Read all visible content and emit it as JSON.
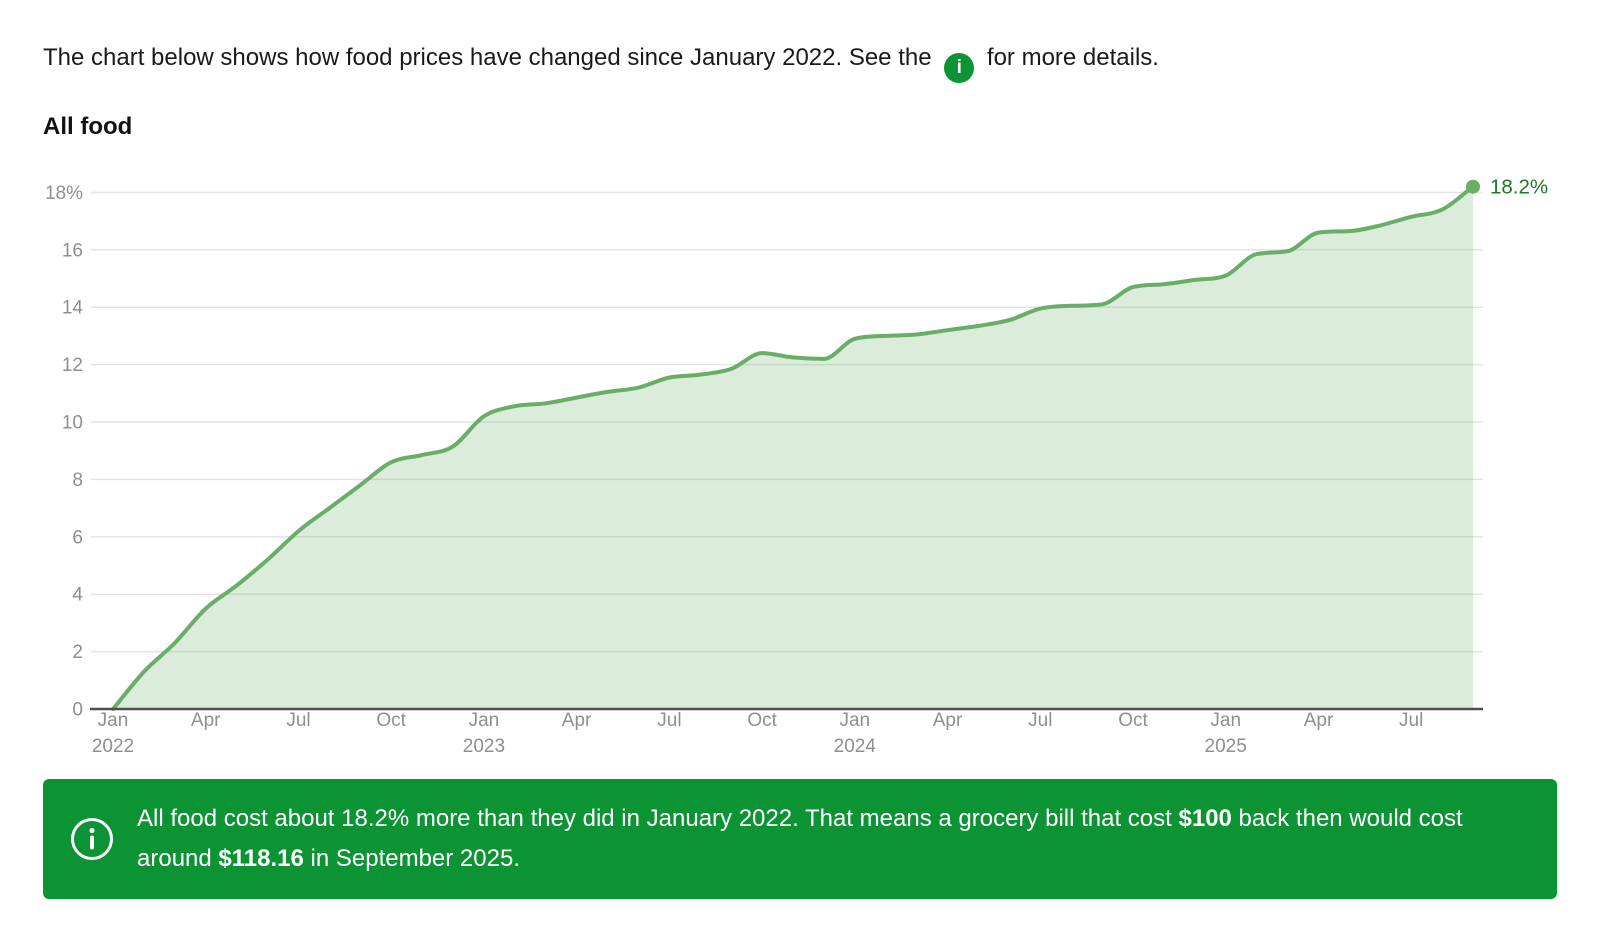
{
  "intro": {
    "text_before_icon": "The chart below shows how food prices have changed since January 2022. See the",
    "text_after_icon": "for more details.",
    "info_icon_glyph": "i"
  },
  "colors": {
    "accent_green": "#0c9434",
    "line_green": "#68ae66",
    "fill_green": "rgba(104,174,102,0.24)",
    "end_label_green": "#1d7a24",
    "gridline_gray": "#e4e4e4",
    "axis_dark": "#4f4f4f",
    "tick_gray": "#8f8f8f",
    "text_dark": "#1a1a1a"
  },
  "chart_data": {
    "type": "area",
    "title": "All food",
    "series_name": "All food",
    "grid": "horizontal",
    "legend": "none",
    "ylim": [
      0,
      19.2
    ],
    "y_unit": "%",
    "end_label": "18.2%",
    "x": [
      "Jan 2022",
      "Feb 2022",
      "Mar 2022",
      "Apr 2022",
      "May 2022",
      "Jun 2022",
      "Jul 2022",
      "Aug 2022",
      "Sep 2022",
      "Oct 2022",
      "Nov 2022",
      "Dec 2022",
      "Jan 2023",
      "Feb 2023",
      "Mar 2023",
      "Apr 2023",
      "May 2023",
      "Jun 2023",
      "Jul 2023",
      "Aug 2023",
      "Sep 2023",
      "Oct 2023",
      "Nov 2023",
      "Dec 2023",
      "Jan 2024",
      "Feb 2024",
      "Mar 2024",
      "Apr 2024",
      "May 2024",
      "Jun 2024",
      "Jul 2024",
      "Aug 2024",
      "Sep 2024",
      "Oct 2024",
      "Nov 2024",
      "Dec 2024",
      "Jan 2025",
      "Feb 2025",
      "Mar 2025",
      "Apr 2025",
      "May 2025",
      "Jun 2025",
      "Jul 2025",
      "Aug 2025",
      "Sep 2025"
    ],
    "values": [
      0,
      1.3,
      2.3,
      3.5,
      4.3,
      5.2,
      6.2,
      7.0,
      7.8,
      8.6,
      8.85,
      9.15,
      10.2,
      10.55,
      10.65,
      10.85,
      11.05,
      11.2,
      11.55,
      11.65,
      11.85,
      12.4,
      12.25,
      12.2,
      12.9,
      13.0,
      13.05,
      13.2,
      13.35,
      13.55,
      13.95,
      14.05,
      14.1,
      14.7,
      14.8,
      14.95,
      15.1,
      15.85,
      15.95,
      16.6,
      16.65,
      16.85,
      17.15,
      17.4,
      18.2
    ],
    "y_ticks": [
      {
        "value": 0,
        "label": "0"
      },
      {
        "value": 2,
        "label": "2"
      },
      {
        "value": 4,
        "label": "4"
      },
      {
        "value": 6,
        "label": "6"
      },
      {
        "value": 8,
        "label": "8"
      },
      {
        "value": 10,
        "label": "10"
      },
      {
        "value": 12,
        "label": "12"
      },
      {
        "value": 14,
        "label": "14"
      },
      {
        "value": 16,
        "label": "16"
      },
      {
        "value": 18,
        "label": "18%"
      }
    ],
    "x_ticks": [
      {
        "month_index": 0,
        "label": "Jan",
        "year": "2022"
      },
      {
        "month_index": 3,
        "label": "Apr"
      },
      {
        "month_index": 6,
        "label": "Jul"
      },
      {
        "month_index": 9,
        "label": "Oct"
      },
      {
        "month_index": 12,
        "label": "Jan",
        "year": "2023"
      },
      {
        "month_index": 15,
        "label": "Apr"
      },
      {
        "month_index": 18,
        "label": "Jul"
      },
      {
        "month_index": 21,
        "label": "Oct"
      },
      {
        "month_index": 24,
        "label": "Jan",
        "year": "2024"
      },
      {
        "month_index": 27,
        "label": "Apr"
      },
      {
        "month_index": 30,
        "label": "Jul"
      },
      {
        "month_index": 33,
        "label": "Oct"
      },
      {
        "month_index": 36,
        "label": "Jan",
        "year": "2025"
      },
      {
        "month_index": 39,
        "label": "Apr"
      },
      {
        "month_index": 42,
        "label": "Jul"
      }
    ]
  },
  "callout": {
    "segments": [
      {
        "text": "All food cost about 18.2% more than they did in January 2022. That means a grocery bill that cost ",
        "bold": false
      },
      {
        "text": "$100",
        "bold": true
      },
      {
        "text": " back then would cost around ",
        "bold": false
      },
      {
        "text": "$118.16",
        "bold": true
      },
      {
        "text": " in September 2025.",
        "bold": false
      }
    ]
  }
}
